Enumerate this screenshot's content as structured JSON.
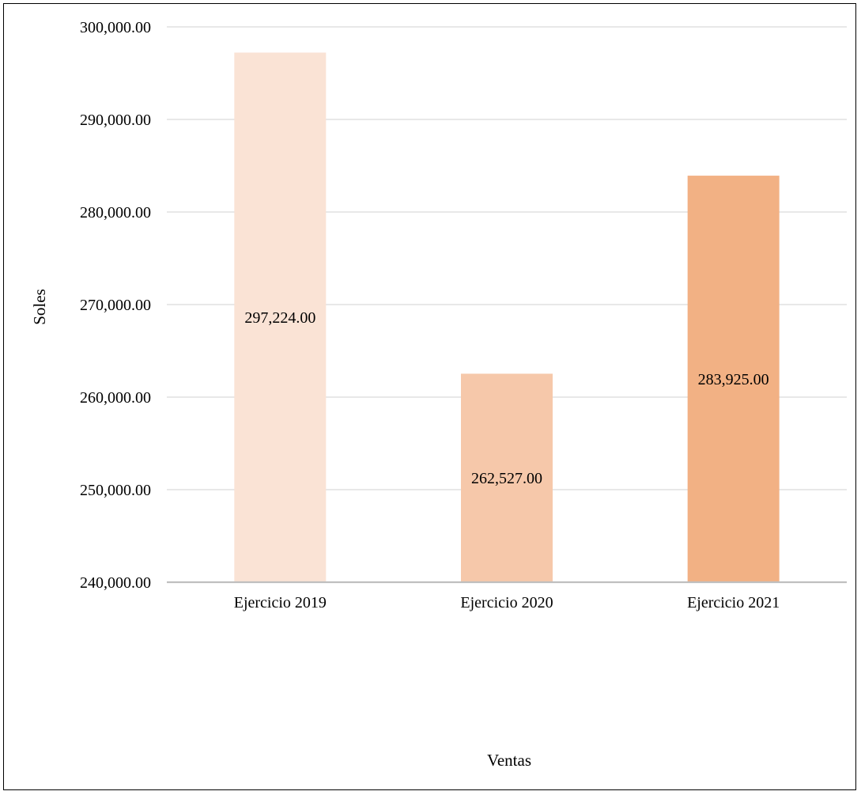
{
  "chart_data": {
    "type": "bar",
    "title": "",
    "xlabel": "Ventas",
    "ylabel": "Soles",
    "categories": [
      "Ejercicio 2019",
      "Ejercicio 2020",
      "Ejercicio 2021"
    ],
    "values": [
      297224,
      262527,
      283925
    ],
    "data_labels": [
      "297,224.00",
      "262,527.00",
      "283,925.00"
    ],
    "bar_colors": [
      "#fae3d5",
      "#f6c8aa",
      "#f2b184"
    ],
    "ylim": [
      240000,
      300000
    ],
    "yticks": [
      240000,
      250000,
      260000,
      270000,
      280000,
      290000,
      300000
    ],
    "ytick_labels": [
      "240,000.00",
      "250,000.00",
      "260,000.00",
      "270,000.00",
      "280,000.00",
      "290,000.00",
      "300,000.00"
    ],
    "grid": true,
    "legend": "none",
    "gridline_color": "#d9d9d9",
    "axis_color": "#bfbfbf"
  }
}
